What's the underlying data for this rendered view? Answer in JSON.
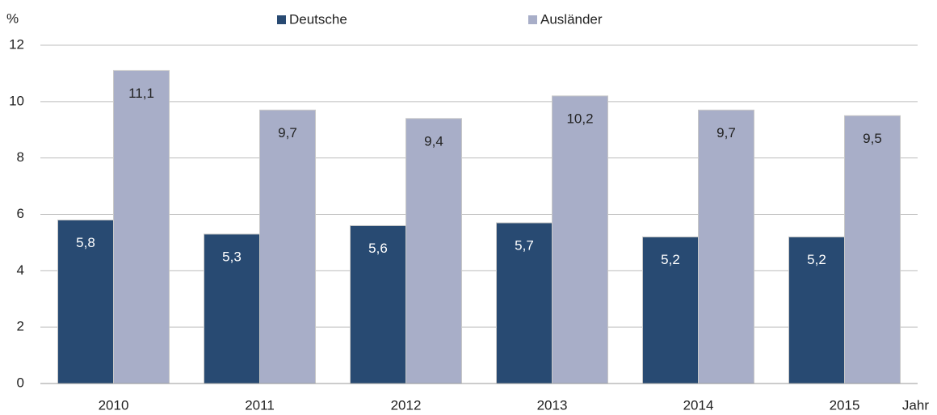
{
  "chart_data": {
    "type": "bar",
    "y_label": "%",
    "x_label": "Jahr",
    "categories": [
      "2010",
      "2011",
      "2012",
      "2013",
      "2014",
      "2015"
    ],
    "series": [
      {
        "name": "Deutsche",
        "color": "#284a72",
        "values": [
          5.8,
          5.3,
          5.6,
          5.7,
          5.2,
          5.2
        ],
        "value_labels": [
          "5,8",
          "5,3",
          "5,6",
          "5,7",
          "5,2",
          "5,2"
        ]
      },
      {
        "name": "Ausländer",
        "color": "#a8aec8",
        "values": [
          11.1,
          9.7,
          9.4,
          10.2,
          9.7,
          9.5
        ],
        "value_labels": [
          "11,1",
          "9,7",
          "9,4",
          "10,2",
          "9,7",
          "9,5"
        ]
      }
    ],
    "ylim": [
      0,
      12
    ],
    "yticks": [
      0,
      2,
      4,
      6,
      8,
      10,
      12
    ],
    "grid": true,
    "legend": "top"
  }
}
